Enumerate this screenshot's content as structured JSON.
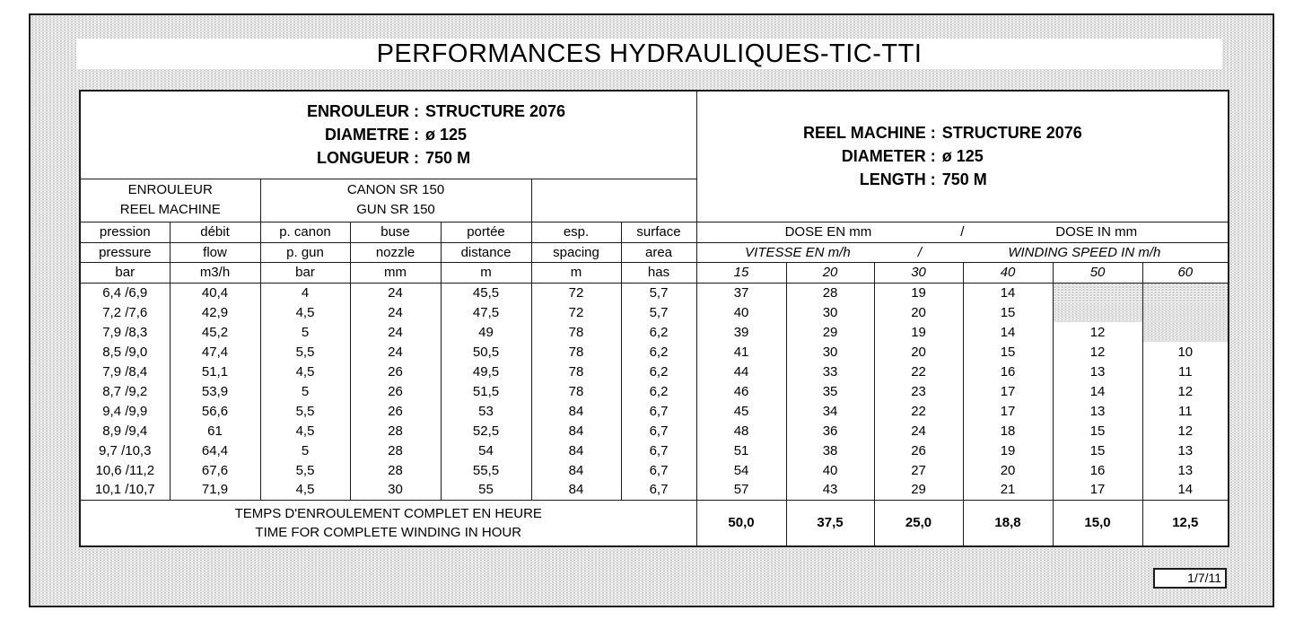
{
  "title": "PERFORMANCES HYDRAULIQUES-TIC-TTI",
  "colors": {
    "border": "#1b1b1b",
    "background": "#ffffff",
    "halftone_dot": "#c4c4c4"
  },
  "header_left": {
    "lines": [
      {
        "label": "ENROULEUR :",
        "value": "STRUCTURE 2076"
      },
      {
        "label": "DIAMETRE :",
        "value": "ø 125"
      },
      {
        "label": "LONGUEUR :",
        "value": "750 M"
      }
    ]
  },
  "header_right": {
    "lines": [
      {
        "label": "REEL MACHINE :",
        "value": "STRUCTURE 2076"
      },
      {
        "label": "DIAMETER :",
        "value": "ø 125"
      },
      {
        "label": "LENGTH :",
        "value": "750 M"
      }
    ]
  },
  "groups": {
    "machine_fr": "ENROULEUR",
    "machine_en": "REEL MACHINE",
    "gun_fr": "CANON SR 150",
    "gun_en": "GUN SR 150"
  },
  "columns_left": {
    "fr": [
      "pression",
      "débit",
      "p. canon",
      "buse",
      "portée",
      "esp.",
      "surface"
    ],
    "en": [
      "pressure",
      "flow",
      "p. gun",
      "nozzle",
      "distance",
      "spacing",
      "area"
    ],
    "units": [
      "bar",
      "m3/h",
      "bar",
      "mm",
      "m",
      "m",
      "has"
    ]
  },
  "dose_header": {
    "fr": "DOSE EN mm",
    "sep": "/",
    "en": "DOSE IN mm"
  },
  "speed_header": {
    "fr": "VITESSE EN m/h",
    "sep": "/",
    "en": "WINDING SPEED IN m/h"
  },
  "speeds": [
    "15",
    "20",
    "30",
    "40",
    "50",
    "60"
  ],
  "rows": [
    {
      "left": [
        "6,4 /6,9",
        "40,4",
        "4",
        "24",
        "45,5",
        "72",
        "5,7"
      ],
      "doses": [
        "37",
        "28",
        "19",
        "14",
        null,
        null
      ]
    },
    {
      "left": [
        "7,2 /7,6",
        "42,9",
        "4,5",
        "24",
        "47,5",
        "72",
        "5,7"
      ],
      "doses": [
        "40",
        "30",
        "20",
        "15",
        null,
        null
      ]
    },
    {
      "left": [
        "7,9 /8,3",
        "45,2",
        "5",
        "24",
        "49",
        "78",
        "6,2"
      ],
      "doses": [
        "39",
        "29",
        "19",
        "14",
        "12",
        null
      ]
    },
    {
      "left": [
        "8,5 /9,0",
        "47,4",
        "5,5",
        "24",
        "50,5",
        "78",
        "6,2"
      ],
      "doses": [
        "41",
        "30",
        "20",
        "15",
        "12",
        "10"
      ]
    },
    {
      "left": [
        "7,9 /8,4",
        "51,1",
        "4,5",
        "26",
        "49,5",
        "78",
        "6,2"
      ],
      "doses": [
        "44",
        "33",
        "22",
        "16",
        "13",
        "11"
      ]
    },
    {
      "left": [
        "8,7 /9,2",
        "53,9",
        "5",
        "26",
        "51,5",
        "78",
        "6,2"
      ],
      "doses": [
        "46",
        "35",
        "23",
        "17",
        "14",
        "12"
      ]
    },
    {
      "left": [
        "9,4 /9,9",
        "56,6",
        "5,5",
        "26",
        "53",
        "84",
        "6,7"
      ],
      "doses": [
        "45",
        "34",
        "22",
        "17",
        "13",
        "11"
      ]
    },
    {
      "left": [
        "8,9 /9,4",
        "61",
        "4,5",
        "28",
        "52,5",
        "84",
        "6,7"
      ],
      "doses": [
        "48",
        "36",
        "24",
        "18",
        "15",
        "12"
      ]
    },
    {
      "left": [
        "9,7 /10,3",
        "64,4",
        "5",
        "28",
        "54",
        "84",
        "6,7"
      ],
      "doses": [
        "51",
        "38",
        "26",
        "19",
        "15",
        "13"
      ]
    },
    {
      "left": [
        "10,6 /11,2",
        "67,6",
        "5,5",
        "28",
        "55,5",
        "84",
        "6,7"
      ],
      "doses": [
        "54",
        "40",
        "27",
        "20",
        "16",
        "13"
      ]
    },
    {
      "left": [
        "10,1 /10,7",
        "71,9",
        "4,5",
        "30",
        "55",
        "84",
        "6,7"
      ],
      "doses": [
        "57",
        "43",
        "29",
        "21",
        "17",
        "14"
      ]
    }
  ],
  "footer": {
    "label_fr": "TEMPS D'ENROULEMENT COMPLET EN HEURE",
    "label_en": "TIME FOR COMPLETE WINDING IN HOUR",
    "values": [
      "50,0",
      "37,5",
      "25,0",
      "18,8",
      "15,0",
      "12,5"
    ]
  },
  "page_number": "1/7/11"
}
